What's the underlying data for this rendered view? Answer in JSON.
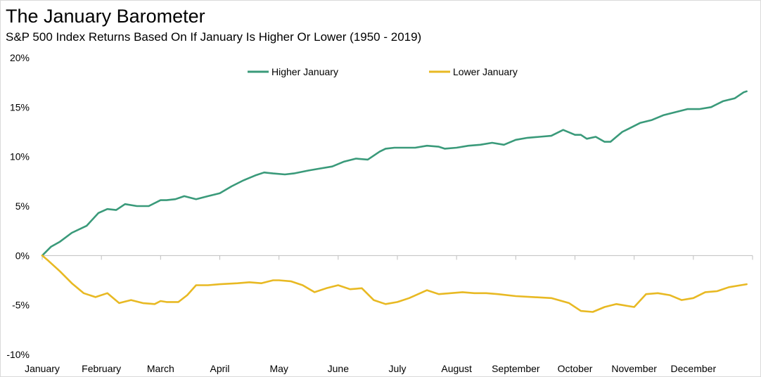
{
  "title": "The January Barometer",
  "subtitle": "S&P 500 Index Returns Based On If January Is Higher Or Lower (1950 - 2019)",
  "chart_data": {
    "type": "line",
    "title": "The January Barometer",
    "subtitle": "S&P 500 Index Returns Based On If January Is Higher Or Lower (1950 - 2019)",
    "xlabel": "",
    "ylabel": "",
    "x_range": [
      0,
      12
    ],
    "ylim": [
      -10,
      20
    ],
    "y_ticks": [
      20,
      15,
      10,
      5,
      0,
      -5,
      -10
    ],
    "y_tick_labels": [
      "20%",
      "15%",
      "10%",
      "5%",
      "0%",
      "-5%",
      "-10%"
    ],
    "x_tick_labels": [
      "January",
      "February",
      "March",
      "April",
      "May",
      "June",
      "July",
      "August",
      "September",
      "October",
      "November",
      "December"
    ],
    "grid": false,
    "legend": {
      "position": "top-center",
      "entries": [
        "Higher January",
        "Lower January"
      ]
    },
    "series": [
      {
        "name": "Higher January",
        "color": "#3a9a7a",
        "x": [
          0,
          0.15,
          0.3,
          0.5,
          0.75,
          0.95,
          1.1,
          1.25,
          1.4,
          1.6,
          1.8,
          2.0,
          2.1,
          2.25,
          2.4,
          2.6,
          2.8,
          3.0,
          3.2,
          3.4,
          3.6,
          3.75,
          3.9,
          4.1,
          4.25,
          4.5,
          4.7,
          4.9,
          5.1,
          5.3,
          5.5,
          5.7,
          5.8,
          5.95,
          6.1,
          6.3,
          6.5,
          6.7,
          6.8,
          7.0,
          7.2,
          7.4,
          7.6,
          7.8,
          8.0,
          8.2,
          8.4,
          8.6,
          8.8,
          9.0,
          9.1,
          9.2,
          9.35,
          9.5,
          9.6,
          9.7,
          9.8,
          9.9,
          10.1,
          10.3,
          10.5,
          10.7,
          10.9,
          11.1,
          11.3,
          11.5,
          11.7,
          11.85,
          11.9
        ],
        "y": [
          0,
          0.9,
          1.4,
          2.3,
          3.0,
          4.3,
          4.7,
          4.6,
          5.2,
          5.0,
          5.0,
          5.6,
          5.6,
          5.7,
          6.0,
          5.7,
          6.0,
          6.3,
          7.0,
          7.6,
          8.1,
          8.4,
          8.3,
          8.2,
          8.3,
          8.6,
          8.8,
          9.0,
          9.5,
          9.8,
          9.7,
          10.5,
          10.8,
          10.9,
          10.9,
          10.9,
          11.1,
          11.0,
          10.8,
          10.9,
          11.1,
          11.2,
          11.4,
          11.2,
          11.7,
          11.9,
          12.0,
          12.1,
          12.7,
          12.2,
          12.2,
          11.8,
          12.0,
          11.5,
          11.5,
          12.0,
          12.5,
          12.8,
          13.4,
          13.7,
          14.2,
          14.5,
          14.8,
          14.8,
          15.0,
          15.6,
          15.9,
          16.5,
          16.6
        ]
      },
      {
        "name": "Lower January",
        "color": "#e8b923",
        "x": [
          0,
          0.1,
          0.3,
          0.5,
          0.7,
          0.9,
          1.1,
          1.3,
          1.5,
          1.7,
          1.9,
          2.0,
          2.1,
          2.3,
          2.45,
          2.6,
          2.8,
          3.0,
          3.3,
          3.5,
          3.7,
          3.9,
          4.0,
          4.2,
          4.4,
          4.6,
          4.8,
          5.0,
          5.2,
          5.4,
          5.6,
          5.8,
          6.0,
          6.2,
          6.5,
          6.7,
          6.9,
          7.1,
          7.3,
          7.5,
          7.7,
          8.0,
          8.3,
          8.6,
          8.9,
          9.1,
          9.3,
          9.5,
          9.7,
          9.8,
          10.0,
          10.2,
          10.4,
          10.6,
          10.8,
          11.0,
          11.2,
          11.4,
          11.6,
          11.8,
          11.9
        ],
        "y": [
          0,
          -0.5,
          -1.6,
          -2.8,
          -3.8,
          -4.2,
          -3.8,
          -4.8,
          -4.5,
          -4.8,
          -4.9,
          -4.6,
          -4.7,
          -4.7,
          -4.0,
          -3.0,
          -3.0,
          -2.9,
          -2.8,
          -2.7,
          -2.8,
          -2.5,
          -2.5,
          -2.6,
          -3.0,
          -3.7,
          -3.3,
          -3.0,
          -3.4,
          -3.3,
          -4.5,
          -4.9,
          -4.7,
          -4.3,
          -3.5,
          -3.9,
          -3.8,
          -3.7,
          -3.8,
          -3.8,
          -3.9,
          -4.1,
          -4.2,
          -4.3,
          -4.8,
          -5.6,
          -5.7,
          -5.2,
          -4.9,
          -5.0,
          -5.2,
          -3.9,
          -3.8,
          -4.0,
          -4.5,
          -4.3,
          -3.7,
          -3.6,
          -3.2,
          -3.0,
          -2.9
        ]
      }
    ]
  }
}
